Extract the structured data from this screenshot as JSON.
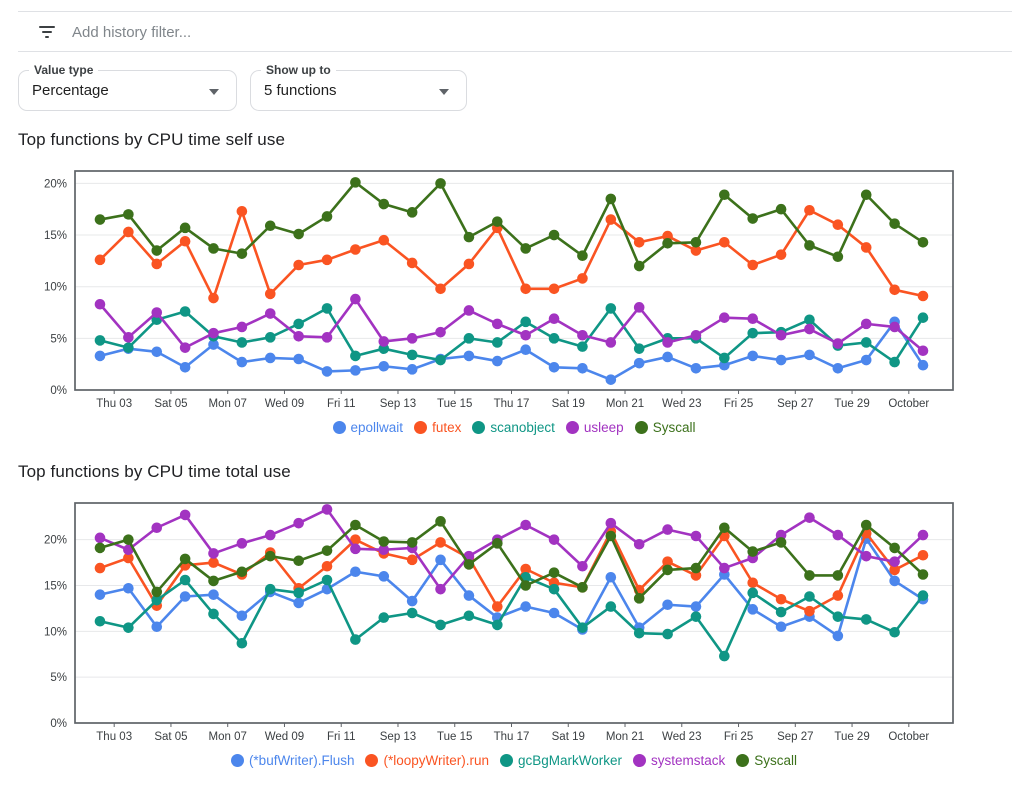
{
  "header": {
    "filter_placeholder": "Add history filter...",
    "filter_icon": "filter-list-icon"
  },
  "controls": {
    "value_type": {
      "label": "Value type",
      "value": "Percentage",
      "caret_icon": "chevron-down-icon"
    },
    "show_up_to": {
      "label": "Show up to",
      "value": "5 functions",
      "caret_icon": "chevron-down-icon"
    }
  },
  "palette": {
    "blue": "#4c86ec",
    "orange": "#fa5422",
    "teal": "#0f9685",
    "purple": "#a233c1",
    "green": "#3c711b",
    "axis": "#5f6368",
    "grid": "#e7e8ea",
    "tick_text": "#3c4043"
  },
  "chart_data": [
    {
      "type": "line",
      "title": "Top functions by CPU time self use",
      "xlabel": "",
      "ylabel": "",
      "grid": true,
      "legend_position": "bottom",
      "ylim": [
        0,
        21.2
      ],
      "y_ticks": [
        0,
        5,
        10,
        15,
        20
      ],
      "y_tick_labels": [
        "0%",
        "5%",
        "10%",
        "15%",
        "20%"
      ],
      "x_tick_labels": [
        "Thu 03",
        "Sat 05",
        "Mon 07",
        "Wed 09",
        "Fri 11",
        "Sep 13",
        "Tue 15",
        "Thu 17",
        "Sat 19",
        "Mon 21",
        "Wed 23",
        "Fri 25",
        "Sep 27",
        "Tue 29",
        "October"
      ],
      "series": [
        {
          "name": "epollwait",
          "color": "blue",
          "values": [
            3.3,
            4.0,
            3.7,
            2.2,
            4.4,
            2.7,
            3.1,
            3.0,
            1.8,
            1.9,
            2.3,
            2.0,
            3.0,
            3.3,
            2.8,
            3.9,
            2.2,
            2.1,
            1.0,
            2.6,
            3.2,
            2.1,
            2.4,
            3.3,
            2.9,
            3.4,
            2.1,
            2.9,
            6.6,
            2.4
          ]
        },
        {
          "name": "futex",
          "color": "orange",
          "values": [
            12.6,
            15.3,
            12.2,
            14.4,
            8.9,
            17.3,
            9.3,
            12.1,
            12.6,
            13.6,
            14.5,
            12.3,
            9.8,
            12.2,
            15.7,
            9.8,
            9.8,
            10.8,
            16.5,
            14.3,
            14.9,
            13.5,
            14.3,
            12.1,
            13.1,
            17.4,
            16.0,
            13.8,
            9.7,
            9.1
          ]
        },
        {
          "name": "scanobject",
          "color": "teal",
          "values": [
            4.8,
            4.1,
            6.8,
            7.6,
            5.2,
            4.6,
            5.1,
            6.4,
            7.9,
            3.3,
            4.0,
            3.4,
            2.9,
            5.0,
            4.6,
            6.6,
            5.0,
            4.2,
            7.9,
            4.0,
            5.0,
            5.0,
            3.1,
            5.5,
            5.6,
            6.8,
            4.3,
            4.6,
            2.7,
            7.0
          ]
        },
        {
          "name": "usleep",
          "color": "purple",
          "values": [
            8.3,
            5.1,
            7.5,
            4.1,
            5.5,
            6.1,
            7.4,
            5.2,
            5.1,
            8.8,
            4.7,
            5.0,
            5.6,
            7.7,
            6.4,
            5.3,
            6.9,
            5.3,
            4.6,
            8.0,
            4.6,
            5.3,
            7.0,
            6.9,
            5.3,
            5.9,
            4.5,
            6.4,
            6.1,
            3.8
          ]
        },
        {
          "name": "Syscall",
          "color": "green",
          "values": [
            16.5,
            17.0,
            13.5,
            15.7,
            13.7,
            13.2,
            15.9,
            15.1,
            16.8,
            20.1,
            18.0,
            17.2,
            20.0,
            14.8,
            16.3,
            13.7,
            15.0,
            13.0,
            18.5,
            12.0,
            14.2,
            14.3,
            18.9,
            16.6,
            17.5,
            14.0,
            12.9,
            18.9,
            16.1,
            14.3
          ]
        }
      ]
    },
    {
      "type": "line",
      "title": "Top functions by CPU time total use",
      "xlabel": "",
      "ylabel": "",
      "grid": true,
      "legend_position": "bottom",
      "ylim": [
        0,
        24.0
      ],
      "y_ticks": [
        0,
        5,
        10,
        15,
        20
      ],
      "y_tick_labels": [
        "0%",
        "5%",
        "10%",
        "15%",
        "20%"
      ],
      "x_tick_labels": [
        "Thu 03",
        "Sat 05",
        "Mon 07",
        "Wed 09",
        "Fri 11",
        "Sep 13",
        "Tue 15",
        "Thu 17",
        "Sat 19",
        "Mon 21",
        "Wed 23",
        "Fri 25",
        "Sep 27",
        "Tue 29",
        "October"
      ],
      "series": [
        {
          "name": "(*bufWriter).Flush",
          "color": "blue",
          "values": [
            14.0,
            14.7,
            10.5,
            13.8,
            14.0,
            11.7,
            14.3,
            13.1,
            14.6,
            16.5,
            16.0,
            13.3,
            17.8,
            13.9,
            11.5,
            12.7,
            12.0,
            10.2,
            15.9,
            10.4,
            12.9,
            12.7,
            16.2,
            12.4,
            10.5,
            11.6,
            9.5,
            20.1,
            15.5,
            13.5
          ]
        },
        {
          "name": "(*loopyWriter).run",
          "color": "orange",
          "values": [
            16.9,
            18.0,
            12.8,
            17.2,
            17.5,
            16.2,
            18.6,
            14.7,
            17.1,
            20.0,
            18.5,
            17.8,
            19.7,
            18.0,
            12.7,
            16.8,
            15.3,
            14.8,
            20.9,
            14.5,
            17.6,
            16.1,
            20.4,
            15.3,
            13.5,
            12.2,
            13.9,
            20.7,
            16.7,
            18.3
          ]
        },
        {
          "name": "gcBgMarkWorker",
          "color": "teal",
          "values": [
            11.1,
            10.4,
            13.4,
            15.6,
            11.9,
            8.7,
            14.6,
            14.2,
            15.6,
            9.1,
            11.5,
            12.0,
            10.7,
            11.7,
            10.7,
            15.9,
            14.6,
            10.4,
            12.7,
            9.8,
            9.7,
            11.6,
            7.3,
            14.2,
            12.1,
            13.8,
            11.6,
            11.3,
            9.9,
            13.9
          ]
        },
        {
          "name": "systemstack",
          "color": "purple",
          "values": [
            20.2,
            18.9,
            21.3,
            22.7,
            18.5,
            19.6,
            20.5,
            21.8,
            23.3,
            19.0,
            18.9,
            19.1,
            14.6,
            18.2,
            20.0,
            21.6,
            20.0,
            17.1,
            21.8,
            19.5,
            21.1,
            20.4,
            16.9,
            18.0,
            20.5,
            22.4,
            20.5,
            18.2,
            17.6,
            20.5
          ]
        },
        {
          "name": "Syscall",
          "color": "green",
          "values": [
            19.1,
            20.0,
            14.3,
            17.9,
            15.5,
            16.5,
            18.2,
            17.7,
            18.8,
            21.6,
            19.8,
            19.7,
            22.0,
            17.3,
            19.6,
            15.0,
            16.4,
            14.8,
            20.4,
            13.6,
            16.7,
            16.9,
            21.3,
            18.7,
            19.7,
            16.1,
            16.1,
            21.6,
            19.1,
            16.2
          ]
        }
      ]
    }
  ]
}
